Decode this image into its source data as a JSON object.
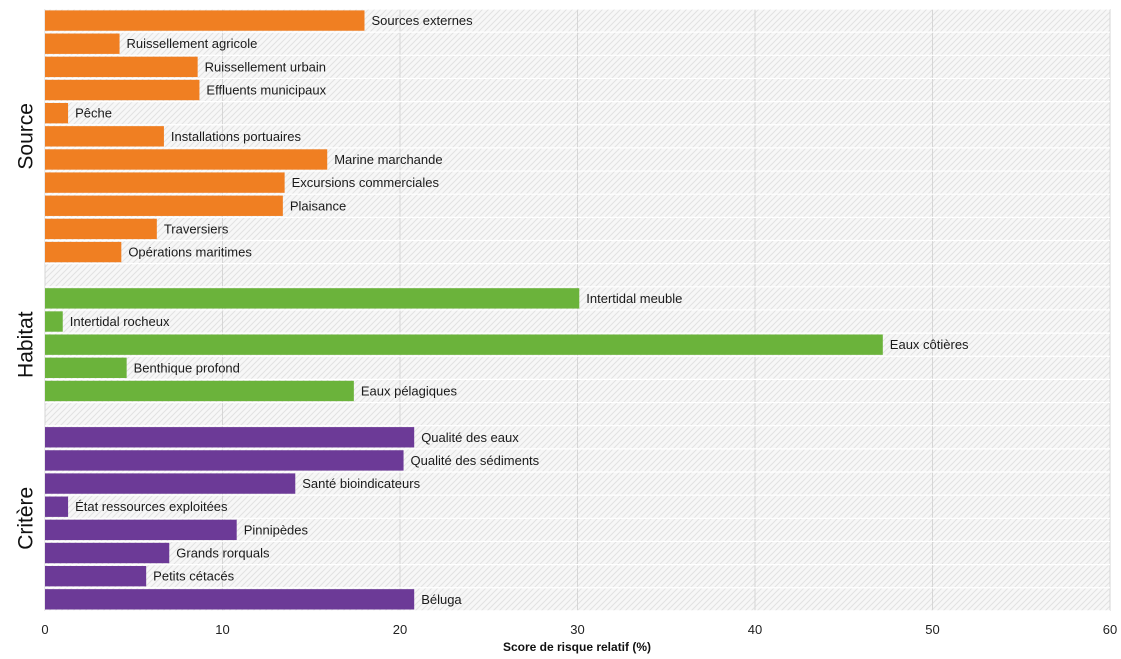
{
  "chart_data": {
    "type": "bar",
    "orientation": "horizontal",
    "xlabel": "Score de risque relatif (%)",
    "xlim": [
      0,
      60
    ],
    "xticks": [
      0,
      10,
      20,
      30,
      40,
      50,
      60
    ],
    "grid": true,
    "groups": [
      {
        "name": "Source",
        "color": "#F07F22",
        "categories": [
          "Sources externes",
          "Ruissellement agricole",
          "Ruissellement urbain",
          "Effluents municipaux",
          "Pêche",
          "Installations portuaires",
          "Marine marchande",
          "Excursions commerciales",
          "Plaisance",
          "Traversiers",
          "Opérations maritimes"
        ],
        "values": [
          18.0,
          4.2,
          8.6,
          8.7,
          1.3,
          6.7,
          15.9,
          13.5,
          13.4,
          6.3,
          4.3
        ]
      },
      {
        "name": "Habitat",
        "color": "#6BB33B",
        "categories": [
          "Intertidal meuble",
          "Intertidal rocheux",
          "Eaux côtières",
          "Benthique profond",
          "Eaux pélagiques"
        ],
        "values": [
          30.1,
          1.0,
          47.2,
          4.6,
          17.4
        ]
      },
      {
        "name": "Critère",
        "color": "#6C3A97",
        "categories": [
          "Qualité des eaux",
          "Qualité des sédiments",
          "Santé bioindicateurs",
          "État ressources exploitées",
          "Pinnipèdes",
          "Grands rorquals",
          "Petits cétacés",
          "Béluga"
        ],
        "values": [
          20.8,
          20.2,
          14.1,
          1.3,
          10.8,
          7.0,
          5.7,
          20.8
        ]
      }
    ]
  }
}
